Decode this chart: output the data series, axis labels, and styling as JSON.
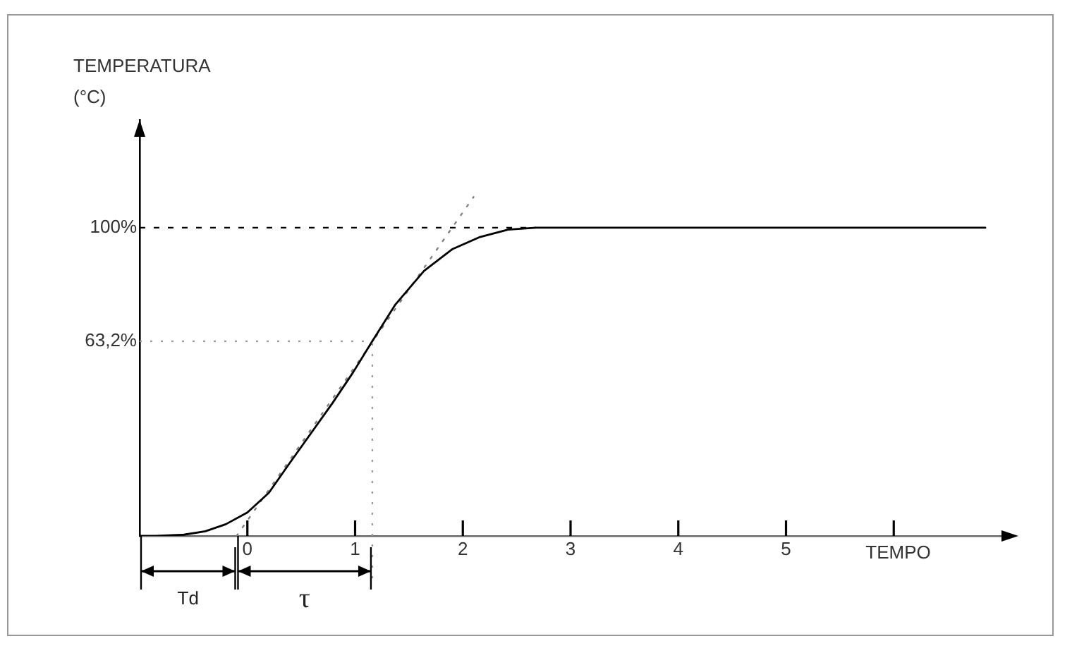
{
  "chart_data": {
    "type": "line",
    "xlabel": "TEMPO",
    "ylabel": "TEMPERATURA (°C)",
    "xlim": [
      -1,
      7
    ],
    "ylim": [
      0,
      135
    ],
    "xticks": [
      0,
      1,
      2,
      3,
      4,
      5,
      {
        "value": 6,
        "label": null
      }
    ],
    "yticks": [
      {
        "value": 63.2,
        "label": "63,2%"
      },
      {
        "value": 100,
        "label": "100%"
      }
    ],
    "series": [
      {
        "color": "#000000",
        "line_style": "solid",
        "x": [
          -1,
          -0.85,
          -0.59,
          -0.39,
          -0.2,
          0,
          0.2,
          0.39,
          0.59,
          0.79,
          0.98,
          1.16,
          1.37,
          1.64,
          1.9,
          2.16,
          2.42,
          2.68,
          6.85
        ],
        "values": [
          0,
          0,
          0.4,
          1.5,
          3.8,
          7.6,
          14,
          23.5,
          33.3,
          43.1,
          53,
          63.2,
          74.9,
          86,
          93,
          97,
          99.4,
          100,
          100
        ]
      },
      {
        "color": "#808080",
        "line_style": "dotted",
        "x": [
          -0.1,
          2.1
        ],
        "values": [
          0,
          110
        ]
      }
    ],
    "ref_lines": [
      {
        "axis": "y",
        "value": 100,
        "label": null,
        "color": "#000000",
        "line_style": "dashed"
      },
      {
        "axis": "y",
        "value": 63.2,
        "label": null,
        "color": "#9a9a9a",
        "line_style": "dotted"
      },
      {
        "axis": "x",
        "value": 1.16,
        "label": null,
        "color": "#9a9a9a",
        "line_style": "dotted"
      }
    ],
    "annotations": [
      "Td",
      "τ"
    ],
    "marker": "none",
    "grid": false,
    "legend": false
  }
}
